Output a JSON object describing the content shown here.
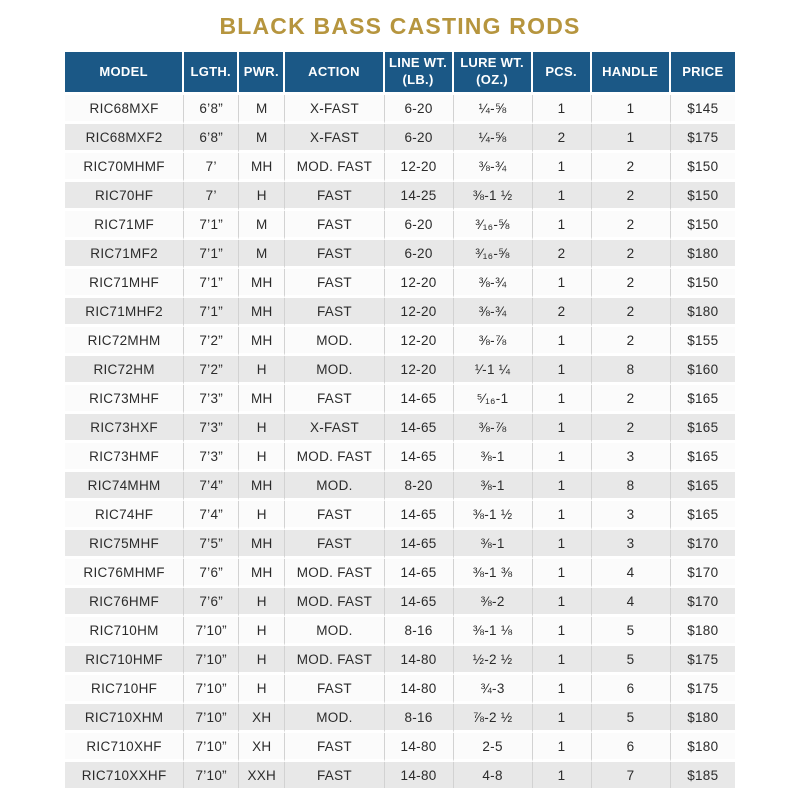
{
  "title": "BLACK BASS CASTING RODS",
  "theme": {
    "title_color": "#B6953E",
    "header_bg": "#1B5886",
    "header_fg": "#FFFFFF",
    "row_bg": "#FBFBFB",
    "row_alt_bg": "#E8E8E8",
    "page_bg": "#FFFFFF"
  },
  "table": {
    "columns": [
      {
        "id": "model",
        "label": "MODEL"
      },
      {
        "id": "length",
        "label": "LGTH."
      },
      {
        "id": "power",
        "label": "PWR."
      },
      {
        "id": "action",
        "label": "ACTION"
      },
      {
        "id": "line-wt",
        "label": "LINE WT. (LB.)"
      },
      {
        "id": "lure-wt",
        "label": "LURE WT. (OZ.)"
      },
      {
        "id": "pcs",
        "label": "PCS."
      },
      {
        "id": "handle",
        "label": "HANDLE"
      },
      {
        "id": "price",
        "label": "PRICE"
      }
    ],
    "rows": [
      [
        "RIC68MXF",
        "6’8”",
        "M",
        "X-FAST",
        "6-20",
        "¼-⅝",
        "1",
        "1",
        "$145"
      ],
      [
        "RIC68MXF2",
        "6’8”",
        "M",
        "X-FAST",
        "6-20",
        "¼-⅝",
        "2",
        "1",
        "$175"
      ],
      [
        "RIC70MHMF",
        "7’",
        "MH",
        "MOD. FAST",
        "12-20",
        "⅜-¾",
        "1",
        "2",
        "$150"
      ],
      [
        "RIC70HF",
        "7’",
        "H",
        "FAST",
        "14-25",
        "⅜-1 ½",
        "1",
        "2",
        "$150"
      ],
      [
        "RIC71MF",
        "7’1”",
        "M",
        "FAST",
        "6-20",
        "³⁄₁₆-⅝",
        "1",
        "2",
        "$150"
      ],
      [
        "RIC71MF2",
        "7’1”",
        "M",
        "FAST",
        "6-20",
        "³⁄₁₆-⅝",
        "2",
        "2",
        "$180"
      ],
      [
        "RIC71MHF",
        "7’1”",
        "MH",
        "FAST",
        "12-20",
        "⅜-¾",
        "1",
        "2",
        "$150"
      ],
      [
        "RIC71MHF2",
        "7’1”",
        "MH",
        "FAST",
        "12-20",
        "⅜-¾",
        "2",
        "2",
        "$180"
      ],
      [
        "RIC72MHM",
        "7’2”",
        "MH",
        "MOD.",
        "12-20",
        "⅜-⅞",
        "1",
        "2",
        "$155"
      ],
      [
        "RIC72HM",
        "7’2”",
        "H",
        "MOD.",
        "12-20",
        "¹⁄-1 ¼",
        "1",
        "8",
        "$160"
      ],
      [
        "RIC73MHF",
        "7’3”",
        "MH",
        "FAST",
        "14-65",
        "⁵⁄₁₆-1",
        "1",
        "2",
        "$165"
      ],
      [
        "RIC73HXF",
        "7’3”",
        "H",
        "X-FAST",
        "14-65",
        "⅜-⅞",
        "1",
        "2",
        "$165"
      ],
      [
        "RIC73HMF",
        "7’3”",
        "H",
        "MOD. FAST",
        "14-65",
        "⅜-1",
        "1",
        "3",
        "$165"
      ],
      [
        "RIC74MHM",
        "7’4”",
        "MH",
        "MOD.",
        "8-20",
        "⅜-1",
        "1",
        "8",
        "$165"
      ],
      [
        "RIC74HF",
        "7’4”",
        "H",
        "FAST",
        "14-65",
        "⅜-1 ½",
        "1",
        "3",
        "$165"
      ],
      [
        "RIC75MHF",
        "7’5”",
        "MH",
        "FAST",
        "14-65",
        "⅜-1",
        "1",
        "3",
        "$170"
      ],
      [
        "RIC76MHMF",
        "7’6”",
        "MH",
        "MOD. FAST",
        "14-65",
        "⅜-1 ⅜",
        "1",
        "4",
        "$170"
      ],
      [
        "RIC76HMF",
        "7’6”",
        "H",
        "MOD. FAST",
        "14-65",
        "⅜-2",
        "1",
        "4",
        "$170"
      ],
      [
        "RIC710HM",
        "7’10”",
        "H",
        "MOD.",
        "8-16",
        "⅜-1 ⅛",
        "1",
        "5",
        "$180"
      ],
      [
        "RIC710HMF",
        "7’10”",
        "H",
        "MOD. FAST",
        "14-80",
        "½-2 ½",
        "1",
        "5",
        "$175"
      ],
      [
        "RIC710HF",
        "7’10”",
        "H",
        "FAST",
        "14-80",
        "¾-3",
        "1",
        "6",
        "$175"
      ],
      [
        "RIC710XHM",
        "7’10”",
        "XH",
        "MOD.",
        "8-16",
        "⅞-2 ½",
        "1",
        "5",
        "$180"
      ],
      [
        "RIC710XHF",
        "7’10”",
        "XH",
        "FAST",
        "14-80",
        "2-5",
        "1",
        "6",
        "$180"
      ],
      [
        "RIC710XXHF",
        "7’10”",
        "XXH",
        "FAST",
        "14-80",
        "4-8",
        "1",
        "7",
        "$185"
      ]
    ]
  }
}
